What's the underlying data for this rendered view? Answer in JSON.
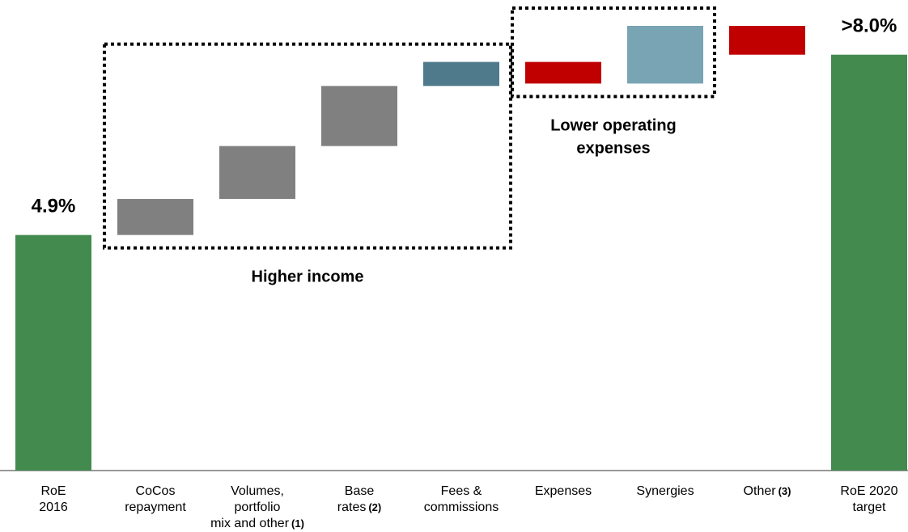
{
  "chart_data": {
    "type": "waterfall",
    "categories": [
      [
        "RoE",
        "2016"
      ],
      [
        "CoCos",
        "repayment"
      ],
      [
        "Volumes,",
        "portfolio",
        "mix and other"
      ],
      [
        "Base",
        "rates"
      ],
      [
        "Fees &",
        "commissions"
      ],
      [
        "Expenses"
      ],
      [
        "Synergies"
      ],
      [
        "Other"
      ],
      [
        "RoE 2020",
        "target"
      ]
    ],
    "notes": [
      null,
      null,
      "(1)",
      "(2)",
      null,
      null,
      null,
      "(3)",
      null
    ],
    "measure": [
      "absolute",
      "relative",
      "relative",
      "relative",
      "relative",
      "relative",
      "relative",
      "relative",
      "absolute"
    ],
    "values": [
      4.9,
      0.75,
      1.1,
      1.25,
      0.5,
      -0.45,
      1.2,
      -0.6,
      8.65
    ],
    "value_labels": [
      "4.9%",
      null,
      null,
      null,
      null,
      null,
      null,
      null,
      ">8.0%"
    ],
    "colors": [
      "#438a4f",
      "#808080",
      "#808080",
      "#808080",
      "#4f7a8c",
      "#c00000",
      "#78a4b4",
      "#c00000",
      "#438a4f"
    ],
    "annotations": [
      {
        "text": [
          "Higher income"
        ],
        "from": 1,
        "to": 4
      },
      {
        "text": [
          "Lower operating",
          "expenses"
        ],
        "from": 5,
        "to": 6
      }
    ]
  }
}
